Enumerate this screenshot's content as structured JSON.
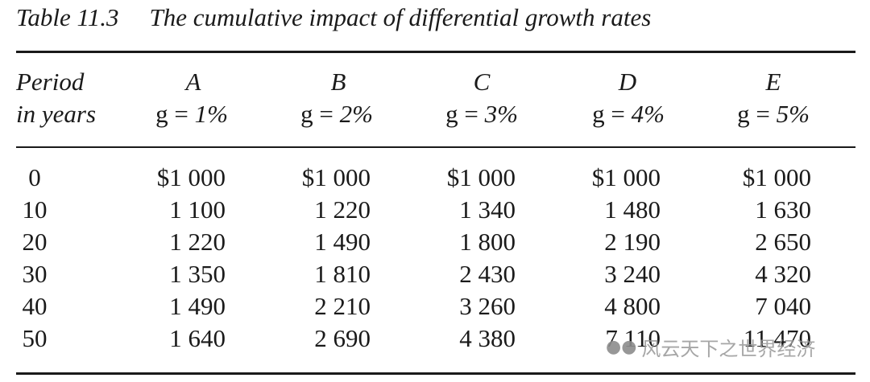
{
  "caption": {
    "number": "Table 11.3",
    "title": "The cumulative impact of differential growth rates"
  },
  "header": {
    "period_line1": "Period",
    "period_line2": "in years",
    "columns": [
      {
        "letter": "A",
        "g_prefix": "g = ",
        "g_value": "1%"
      },
      {
        "letter": "B",
        "g_prefix": "g = ",
        "g_value": "2%"
      },
      {
        "letter": "C",
        "g_prefix": "g = ",
        "g_value": "3%"
      },
      {
        "letter": "D",
        "g_prefix": "g = ",
        "g_value": "4%"
      },
      {
        "letter": "E",
        "g_prefix": "g = ",
        "g_value": "5%"
      }
    ]
  },
  "rows": [
    {
      "period": "0",
      "values": [
        "$1 000",
        "$1 000",
        "$1 000",
        "$1 000",
        "$1 000"
      ]
    },
    {
      "period": "10",
      "values": [
        "1 100",
        "1 220",
        "1 340",
        "1 480",
        "1 630"
      ]
    },
    {
      "period": "20",
      "values": [
        "1 220",
        "1 490",
        "1 800",
        "2 190",
        "2 650"
      ]
    },
    {
      "period": "30",
      "values": [
        "1 350",
        "1 810",
        "2 430",
        "3 240",
        "4 320"
      ]
    },
    {
      "period": "40",
      "values": [
        "1 490",
        "2 210",
        "3 260",
        "4 800",
        "7 040"
      ]
    },
    {
      "period": "50",
      "values": [
        "1 640",
        "2 690",
        "4 380",
        "7 110",
        "11 470"
      ]
    }
  ],
  "watermark": {
    "text": "风云天下之世界经济",
    "icon": "wechat-icon"
  }
}
